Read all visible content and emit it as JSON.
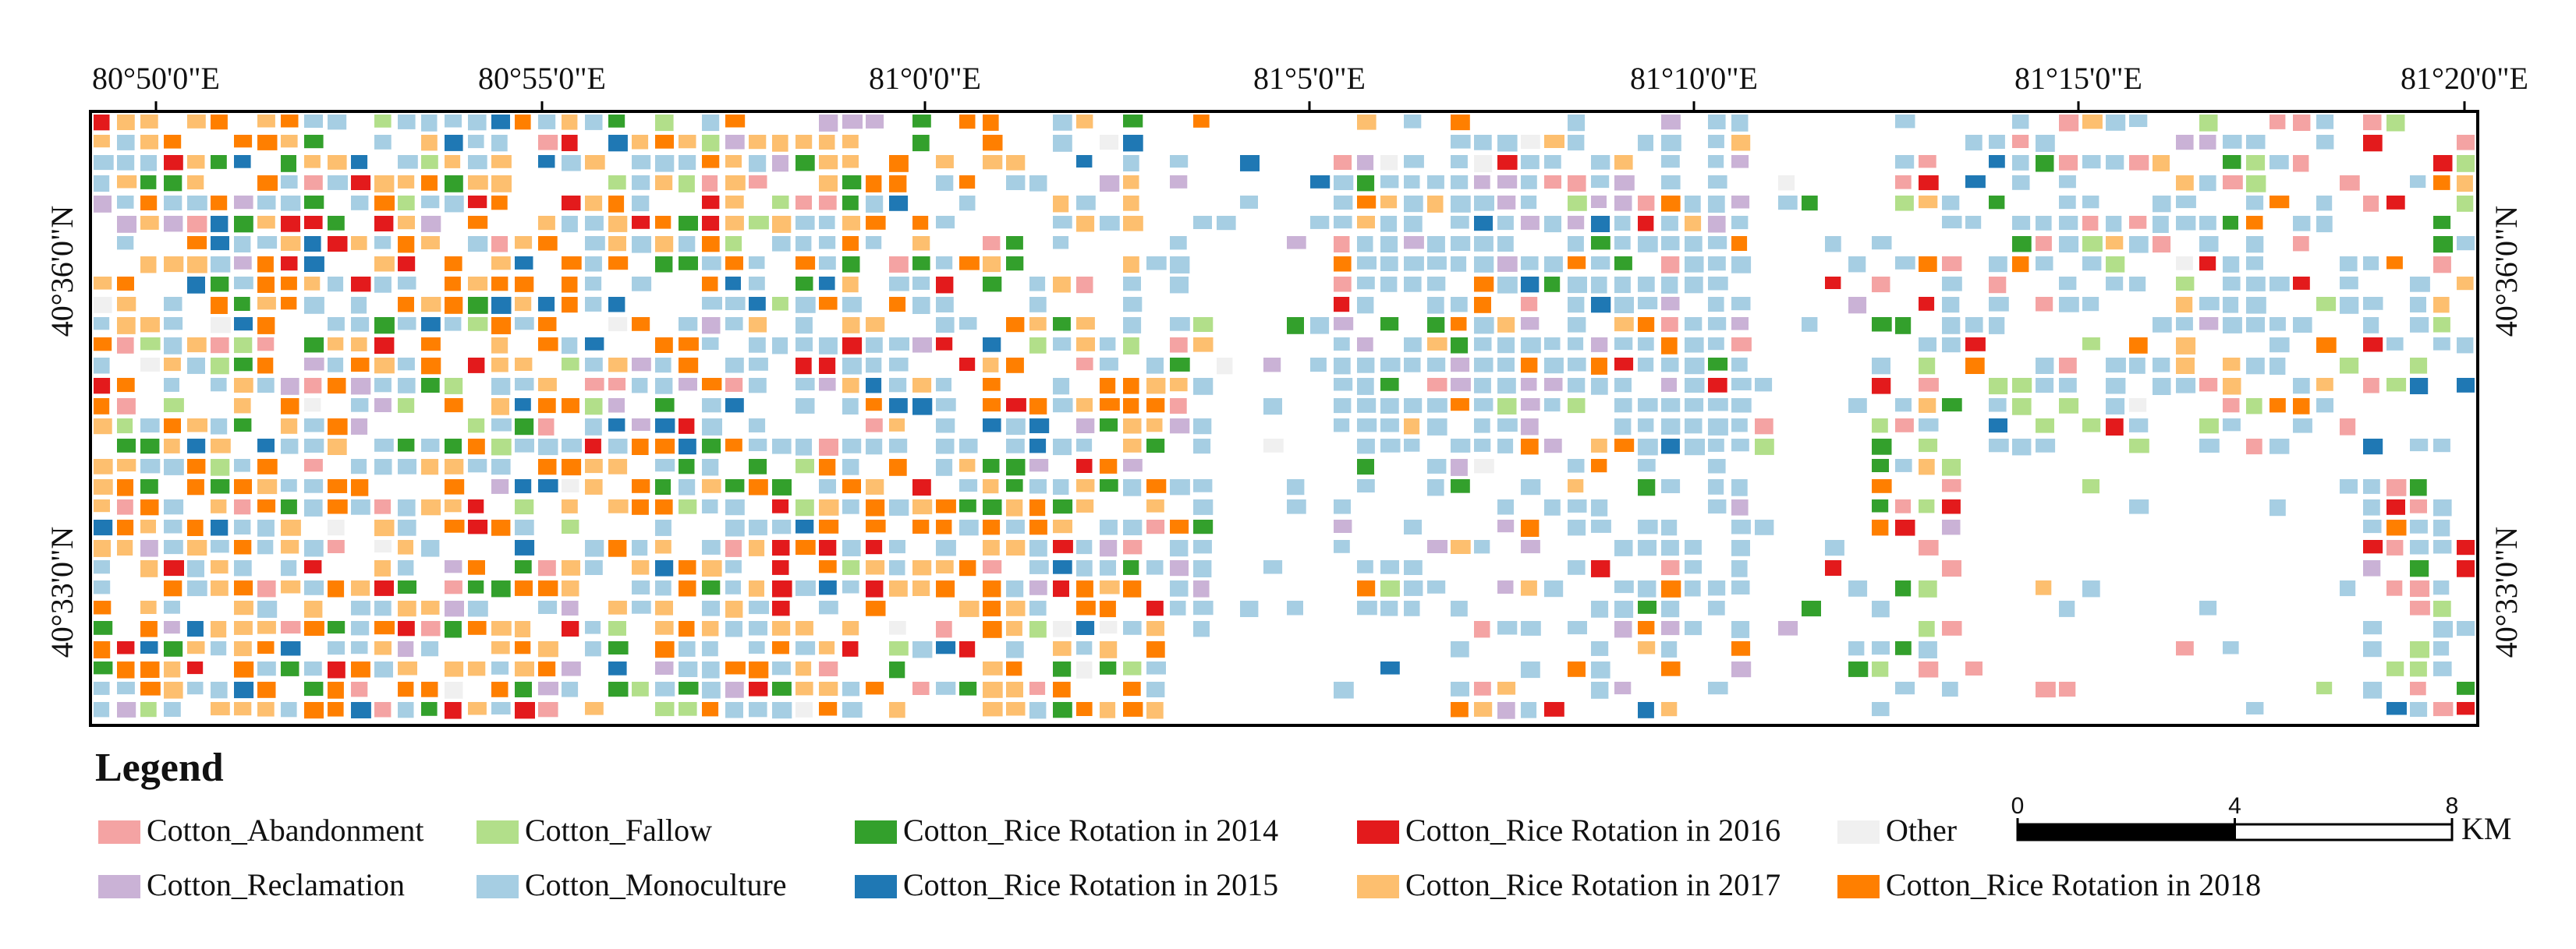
{
  "map": {
    "lon_labels": [
      "80°50'0\"E",
      "80°55'0\"E",
      "81°0'0\"E",
      "81°5'0\"E",
      "81°10'0\"E",
      "81°15'0\"E",
      "81°20'0\"E"
    ],
    "lat_labels": [
      "40°36'0\"N",
      "40°33'0\"N"
    ],
    "legend": {
      "title": "Legend",
      "items": [
        {
          "label": "Cotton_Abandonment",
          "color": "#f4a3a3"
        },
        {
          "label": "Cotton_Fallow",
          "color": "#b2df8a"
        },
        {
          "label": "Cotton_Rice Rotation in 2014",
          "color": "#33a02c"
        },
        {
          "label": "Cotton_Rice Rotation in 2016",
          "color": "#e31a1c"
        },
        {
          "label": "Other",
          "color": "#f0f0f0"
        },
        {
          "label": "Cotton_Reclamation",
          "color": "#cab2d6"
        },
        {
          "label": "Cotton_Monoculture",
          "color": "#a6cee3"
        },
        {
          "label": "Cotton_Rice Rotation in 2015",
          "color": "#1f78b4"
        },
        {
          "label": "Cotton_Rice Rotation in 2017",
          "color": "#fdbf6f"
        },
        {
          "label": "Cotton_Rice Rotation in 2018",
          "color": "#ff7f00"
        }
      ]
    },
    "scale_bar": {
      "ticks": [
        0,
        4,
        8
      ],
      "unit": "KM"
    }
  }
}
